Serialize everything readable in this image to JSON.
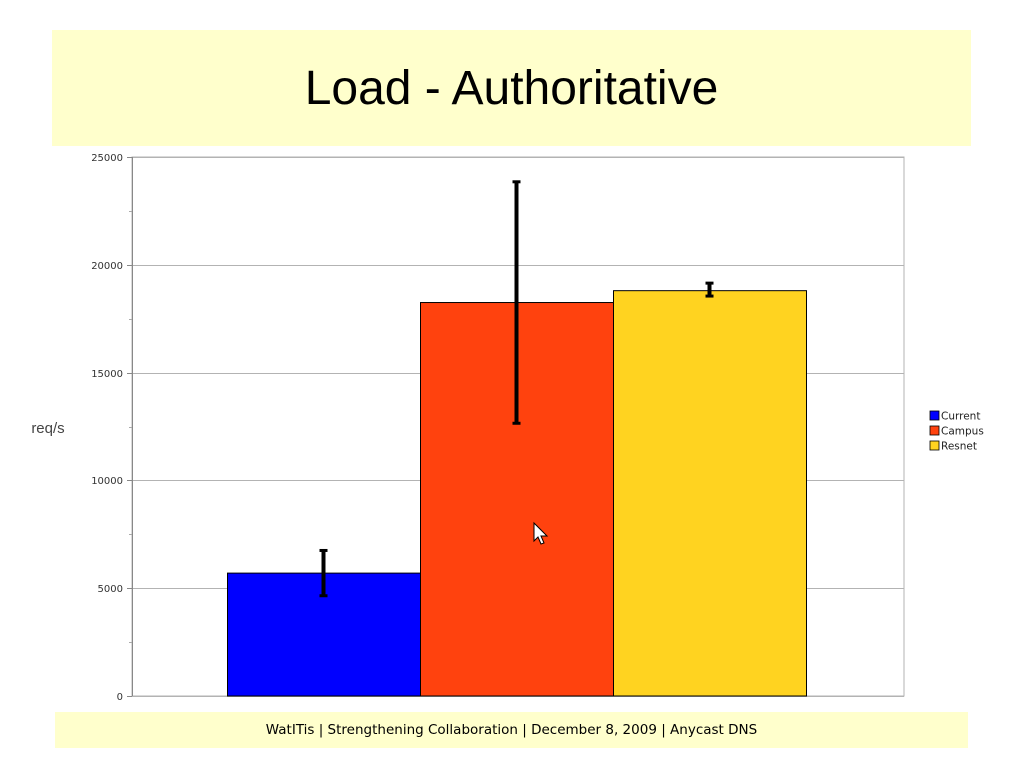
{
  "slide": {
    "title": "Load - Authoritative",
    "footer": "WatITis | Strengthening Collaboration | December 8, 2009 | Anycast DNS"
  },
  "chart_data": {
    "type": "bar",
    "title": "",
    "xlabel": "",
    "ylabel": "req/s",
    "ylim": [
      0,
      25000
    ],
    "yticks": [
      0,
      5000,
      10000,
      15000,
      20000,
      25000
    ],
    "grid": true,
    "legend_position": "right",
    "series": [
      {
        "name": "Current",
        "value": 5700,
        "error_low": 4650,
        "error_high": 6750,
        "color": "#0000ff"
      },
      {
        "name": "Campus",
        "value": 18250,
        "error_low": 12650,
        "error_high": 23850,
        "color": "#ff420e"
      },
      {
        "name": "Resnet",
        "value": 18800,
        "error_low": 18550,
        "error_high": 19150,
        "color": "#ffd320"
      }
    ]
  }
}
